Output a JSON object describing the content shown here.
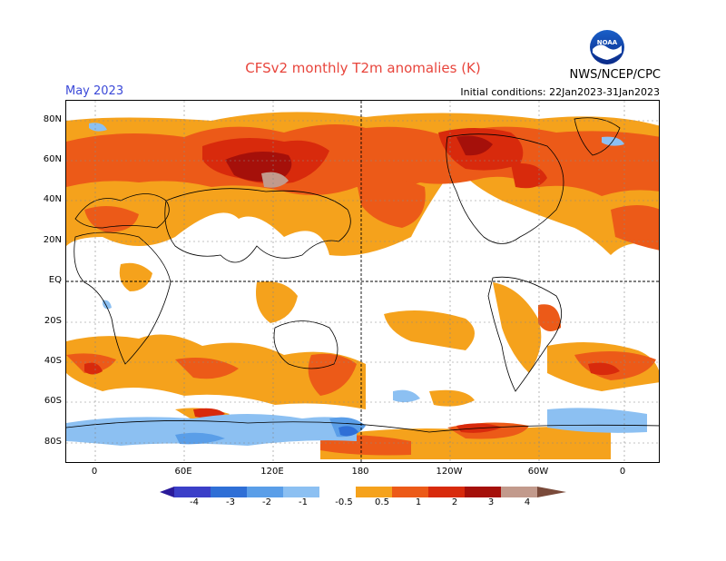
{
  "header": {
    "title": "CFSv2 monthly T2m anomalies (K)",
    "month": "May 2023",
    "initial_conditions": "Initial conditions: 22Jan2023-31Jan2023",
    "agency": "NWS/NCEP/CPC",
    "logo_text": "NOAA"
  },
  "axes": {
    "lat_ticks": [
      "80N",
      "60N",
      "40N",
      "20N",
      "EQ",
      "20S",
      "40S",
      "60S",
      "80S"
    ],
    "lon_ticks": [
      "0",
      "60E",
      "120E",
      "180",
      "120W",
      "60W",
      "0"
    ]
  },
  "colorbar": {
    "labels": [
      "-4",
      "-3",
      "-2",
      "-1",
      "-0.5",
      "0.5",
      "1",
      "2",
      "3",
      "4"
    ],
    "colors": [
      "#2a1a9a",
      "#3b3fc8",
      "#2f6fd6",
      "#5a9ee8",
      "#8cc0f2",
      "#ffffff",
      "#f5a21c",
      "#ec5a18",
      "#d82a0c",
      "#a5100a",
      "#c29a8c",
      "#7a4a3a"
    ]
  }
}
